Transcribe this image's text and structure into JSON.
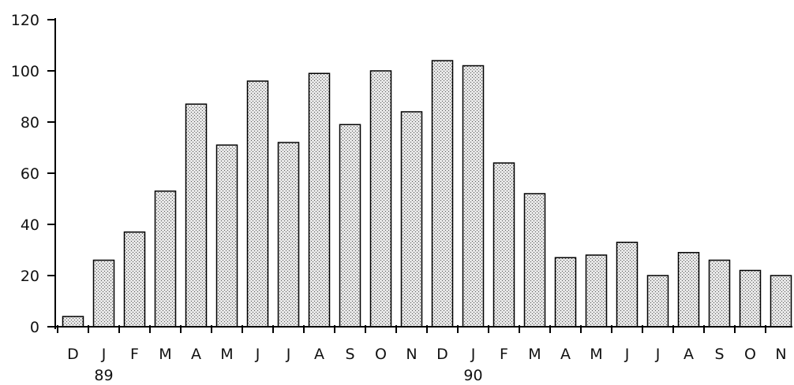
{
  "chart_data": {
    "type": "bar",
    "categories": [
      "D",
      "J",
      "F",
      "M",
      "A",
      "M",
      "J",
      "J",
      "A",
      "S",
      "O",
      "N",
      "D",
      "J",
      "F",
      "M",
      "A",
      "M",
      "J",
      "J",
      "A",
      "S",
      "O",
      "N"
    ],
    "values": [
      4,
      26,
      37,
      53,
      87,
      71,
      96,
      72,
      99,
      79,
      100,
      84,
      104,
      102,
      64,
      52,
      27,
      28,
      33,
      20,
      29,
      26,
      22,
      20
    ],
    "year_labels": [
      {
        "text": "89",
        "category_index": 1
      },
      {
        "text": "90",
        "category_index": 13
      }
    ],
    "yticks": [
      0,
      20,
      40,
      60,
      80,
      100,
      120
    ],
    "ylim": [
      0,
      120
    ],
    "title": "",
    "xlabel": "",
    "ylabel": "",
    "grid": false,
    "bar_fill": "#c8c8c8",
    "bar_stroke": "#000000"
  }
}
